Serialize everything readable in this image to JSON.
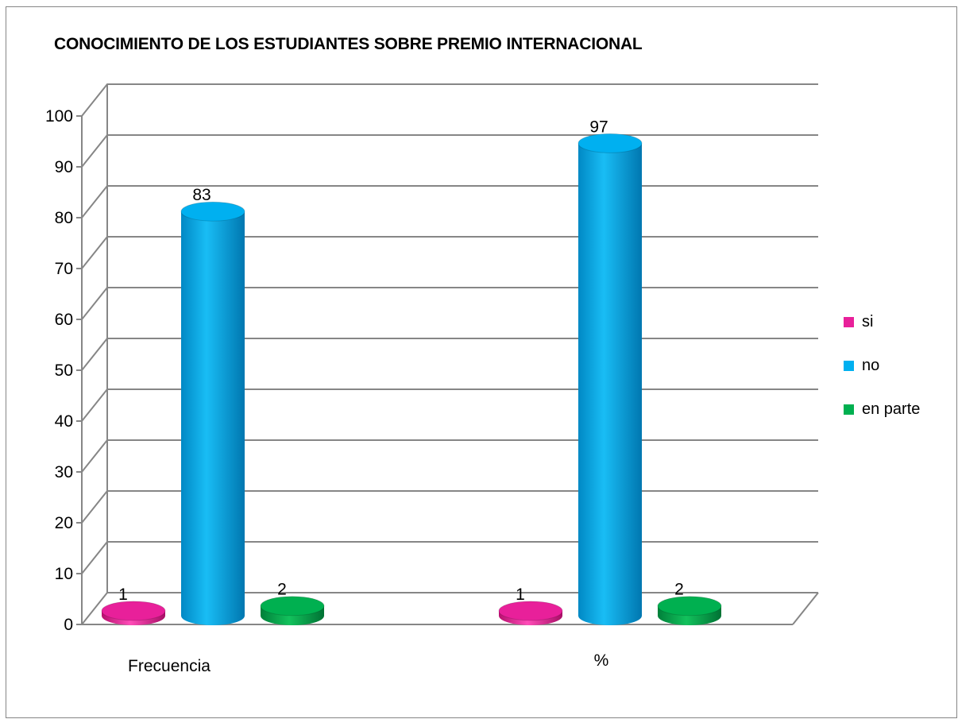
{
  "chart_data": {
    "type": "bar",
    "title": "CONOCIMIENTO DE LOS ESTUDIANTES SOBRE PREMIO INTERNACIONAL",
    "categories": [
      "Frecuencia",
      "%"
    ],
    "series": [
      {
        "name": "si",
        "values": [
          1,
          1
        ],
        "color": "#e8209a"
      },
      {
        "name": "no",
        "values": [
          83,
          97
        ],
        "color": "#00b0f0"
      },
      {
        "name": "en parte",
        "values": [
          2,
          2
        ],
        "color": "#00b050"
      }
    ],
    "ylim": [
      0,
      100
    ],
    "yticks": [
      0,
      10,
      20,
      30,
      40,
      50,
      60,
      70,
      80,
      90,
      100
    ],
    "grid": true,
    "legend_position": "right",
    "data_labels": true
  }
}
